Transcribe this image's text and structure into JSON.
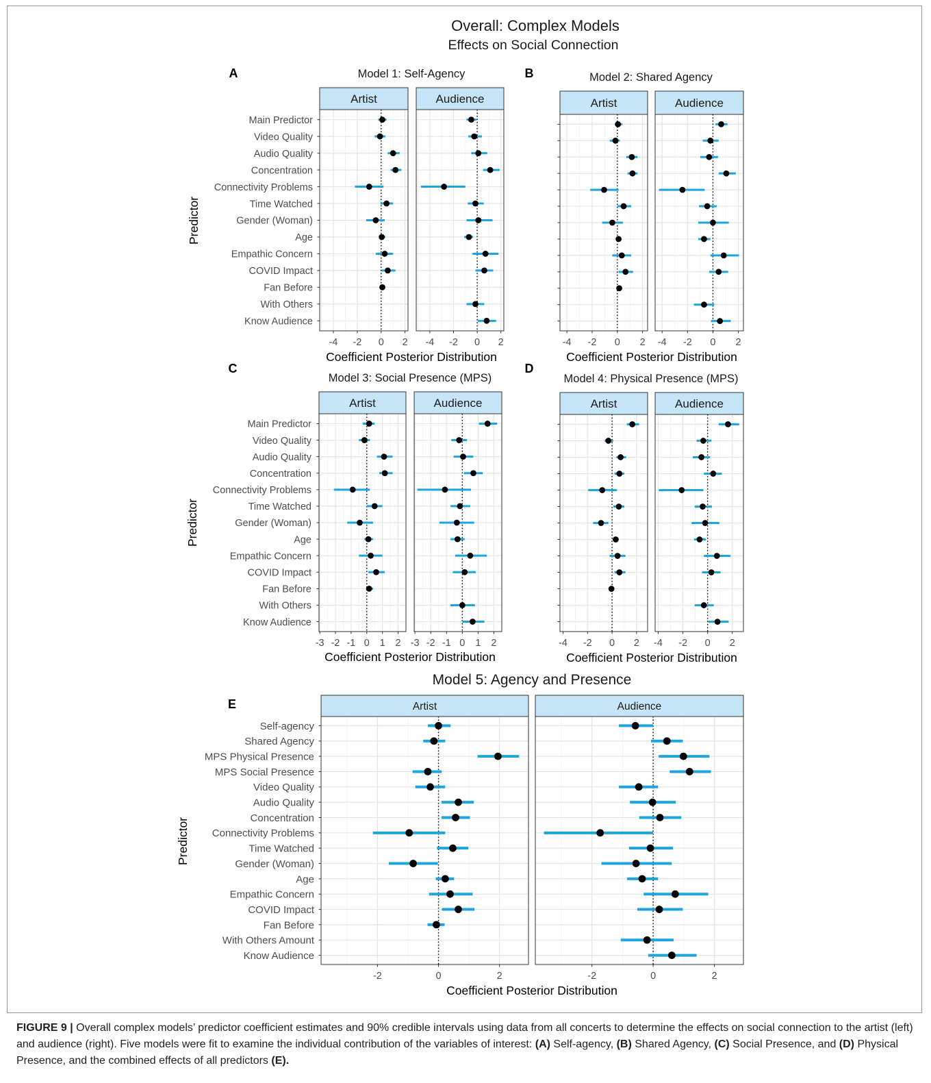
{
  "figure": {
    "title": "Overall: Complex Models",
    "subtitle": "Effects on Social Connection"
  },
  "colors": {
    "interval": "#1ea5df",
    "point": "#000000",
    "strip_fill": "#c6e6f7",
    "reference_line": "#000000"
  },
  "chart_data": [
    {
      "panel": "A",
      "type": "scatter",
      "title": "Model 1: Self-Agency",
      "xlabel": "Coefficient Posterior Distribution",
      "ylabel": "Predictor",
      "categories": [
        "Main Predictor",
        "Video Quality",
        "Audio Quality",
        "Concentration",
        "Connectivity Problems",
        "Time Watched",
        "Gender (Woman)",
        "Age",
        "Empathic Concern",
        "COVID Impact",
        "Fan Before",
        "With Others",
        "Know Audience"
      ],
      "xlim": [
        -5.15,
        2.25
      ],
      "xticks": [
        -4,
        -2,
        0,
        2
      ],
      "reference_line": 0,
      "grid": true,
      "series": [
        {
          "name": "Artist",
          "estimate": [
            0.1,
            -0.1,
            1.0,
            1.2,
            -1.0,
            0.45,
            -0.45,
            0.05,
            0.3,
            0.55,
            0.1,
            null,
            null
          ],
          "lower": [
            -0.25,
            -0.55,
            0.55,
            0.8,
            -2.2,
            -0.05,
            -1.25,
            -0.15,
            -0.45,
            0.05,
            -0.05,
            null,
            null
          ],
          "upper": [
            0.45,
            0.35,
            1.55,
            1.7,
            0.2,
            1.0,
            0.3,
            0.35,
            1.0,
            1.2,
            0.3,
            null,
            null
          ]
        },
        {
          "name": "Audience",
          "estimate": [
            -0.5,
            -0.25,
            0.1,
            1.1,
            -2.8,
            -0.15,
            0.1,
            -0.7,
            0.7,
            0.6,
            null,
            -0.15,
            0.8
          ],
          "lower": [
            -0.9,
            -0.75,
            -0.5,
            0.5,
            -4.75,
            -0.8,
            -0.9,
            -1.1,
            -0.4,
            -0.15,
            null,
            -0.9,
            0.05
          ],
          "upper": [
            -0.05,
            0.4,
            0.85,
            1.9,
            -1.0,
            0.55,
            1.3,
            -0.35,
            1.8,
            1.35,
            null,
            0.6,
            1.6
          ]
        }
      ]
    },
    {
      "panel": "B",
      "type": "scatter",
      "title": "Model 2: Shared Agency",
      "xlabel": "Coefficient Posterior Distribution",
      "xlim": [
        -4.55,
        2.4
      ],
      "xticks": [
        -4,
        -2,
        0,
        2
      ],
      "reference_line": 0,
      "grid": true,
      "series": [
        {
          "name": "Artist",
          "estimate": [
            0.05,
            -0.15,
            1.15,
            1.2,
            -1.05,
            0.5,
            -0.4,
            0.1,
            0.35,
            0.65,
            0.15,
            null,
            null
          ],
          "lower": [
            -0.2,
            -0.6,
            0.7,
            0.8,
            -2.15,
            0.0,
            -1.2,
            -0.1,
            -0.4,
            0.1,
            0.0,
            null,
            null
          ],
          "upper": [
            0.4,
            0.2,
            1.6,
            1.6,
            0.1,
            1.1,
            0.45,
            0.3,
            1.1,
            1.25,
            0.3,
            null,
            null
          ]
        },
        {
          "name": "Audience",
          "estimate": [
            0.65,
            -0.2,
            -0.3,
            1.05,
            -2.4,
            -0.45,
            0.0,
            -0.7,
            0.85,
            0.45,
            null,
            -0.7,
            0.55
          ],
          "lower": [
            0.2,
            -0.8,
            -1.0,
            0.45,
            -4.25,
            -1.1,
            -1.15,
            -1.15,
            -0.2,
            -0.3,
            null,
            -1.5,
            -0.15
          ],
          "upper": [
            1.15,
            0.45,
            0.4,
            1.8,
            -0.65,
            0.3,
            1.25,
            -0.2,
            2.05,
            1.2,
            null,
            0.1,
            1.4
          ]
        }
      ]
    },
    {
      "panel": "C",
      "type": "scatter",
      "title": "Model 3: Social Presence (MPS)",
      "xlabel": "Coefficient Posterior Distribution",
      "ylabel": "Predictor",
      "categories": [
        "Main Predictor",
        "Video Quality",
        "Audio Quality",
        "Concentration",
        "Connectivity Problems",
        "Time Watched",
        "Gender (Woman)",
        "Age",
        "Empathic Concern",
        "COVID Impact",
        "Fan Before",
        "With Others",
        "Know Audience"
      ],
      "xlim": [
        -3.05,
        2.5
      ],
      "xticks": [
        -3,
        -2,
        -1,
        0,
        1,
        2
      ],
      "reference_line": 0,
      "grid": true,
      "series": [
        {
          "name": "Artist",
          "estimate": [
            0.15,
            -0.15,
            1.1,
            1.15,
            -0.9,
            0.5,
            -0.45,
            0.1,
            0.25,
            0.6,
            0.15,
            null,
            null
          ],
          "lower": [
            -0.25,
            -0.5,
            0.65,
            0.8,
            -2.1,
            0.0,
            -1.25,
            -0.15,
            -0.5,
            0.1,
            -0.05,
            null,
            null
          ],
          "upper": [
            0.5,
            0.2,
            1.65,
            1.65,
            0.2,
            1.0,
            0.4,
            0.4,
            1.0,
            1.15,
            0.4,
            null,
            null
          ]
        },
        {
          "name": "Audience",
          "estimate": [
            1.6,
            -0.2,
            0.05,
            0.7,
            -1.1,
            -0.15,
            -0.35,
            -0.3,
            0.5,
            0.15,
            null,
            0.0,
            0.65
          ],
          "lower": [
            1.05,
            -0.7,
            -0.55,
            0.1,
            -2.85,
            -0.75,
            -1.45,
            -0.75,
            -0.45,
            -0.6,
            null,
            -0.75,
            0.0
          ],
          "upper": [
            2.2,
            0.3,
            0.7,
            1.3,
            0.55,
            0.5,
            0.75,
            0.15,
            1.55,
            0.85,
            null,
            0.8,
            1.4
          ]
        }
      ]
    },
    {
      "panel": "D",
      "type": "scatter",
      "title": "Model 4: Physical Presence (MPS)",
      "xlabel": "Coefficient Posterior Distribution",
      "xlim": [
        -4.25,
        2.9
      ],
      "xticks": [
        -4,
        -2,
        0,
        2
      ],
      "reference_line": 0,
      "grid": true,
      "series": [
        {
          "name": "Artist",
          "estimate": [
            1.65,
            -0.3,
            0.7,
            0.6,
            -0.8,
            0.55,
            -0.9,
            0.3,
            0.45,
            0.6,
            -0.05,
            null,
            null
          ],
          "lower": [
            1.2,
            -0.6,
            0.35,
            0.2,
            -1.95,
            0.1,
            -1.55,
            0.1,
            -0.2,
            0.2,
            -0.2,
            null,
            null
          ],
          "upper": [
            2.2,
            0.1,
            1.15,
            1.0,
            0.4,
            1.0,
            -0.3,
            0.5,
            1.1,
            1.1,
            0.15,
            null,
            null
          ]
        },
        {
          "name": "Audience",
          "estimate": [
            1.65,
            -0.35,
            -0.5,
            0.45,
            -2.1,
            -0.4,
            -0.2,
            -0.65,
            0.75,
            0.3,
            null,
            -0.3,
            0.8
          ],
          "lower": [
            0.9,
            -0.9,
            -1.2,
            -0.3,
            -3.95,
            -1.05,
            -1.3,
            -1.1,
            -0.3,
            -0.45,
            null,
            -1.05,
            0.05
          ],
          "upper": [
            2.55,
            0.3,
            0.2,
            1.15,
            -0.35,
            0.35,
            0.95,
            -0.15,
            1.85,
            1.05,
            null,
            0.5,
            1.7
          ]
        }
      ]
    },
    {
      "panel": "E",
      "type": "scatter",
      "title": "Model 5: Agency and Presence",
      "xlabel": "Coefficient Posterior Distribution",
      "ylabel": "Predictor",
      "categories": [
        "Self-agency",
        "Shared Agency",
        "MPS Physical Presence",
        "MPS Social Presence",
        "Video Quality",
        "Audio Quality",
        "Concentration",
        "Connectivity Problems",
        "Time Watched",
        "Gender (Woman)",
        "Age",
        "Empathic Concern",
        "COVID Impact",
        "Fan Before",
        "With Others Amount",
        "Know Audience"
      ],
      "xlim": [
        -3.85,
        2.95
      ],
      "xticks": [
        -2,
        0,
        2
      ],
      "reference_line": 0,
      "grid": true,
      "series": [
        {
          "name": "Artist",
          "estimate": [
            0.0,
            -0.15,
            1.95,
            -0.35,
            -0.27,
            0.65,
            0.56,
            -0.96,
            0.47,
            -0.83,
            0.22,
            0.38,
            0.65,
            -0.07,
            null,
            null
          ],
          "lower": [
            -0.35,
            -0.5,
            1.28,
            -0.85,
            -0.76,
            0.1,
            0.1,
            -2.15,
            -0.05,
            -1.63,
            -0.09,
            -0.31,
            0.11,
            -0.36,
            null,
            null
          ],
          "upper": [
            0.4,
            0.22,
            2.64,
            0.1,
            0.22,
            1.16,
            1.03,
            0.22,
            0.98,
            -0.02,
            0.51,
            1.12,
            1.18,
            0.2,
            null,
            null
          ]
        },
        {
          "name": "Audience",
          "estimate": [
            -0.58,
            0.45,
            0.99,
            1.19,
            -0.47,
            -0.02,
            0.22,
            -1.73,
            -0.09,
            -0.56,
            -0.36,
            0.72,
            0.2,
            null,
            -0.2,
            0.61
          ],
          "lower": [
            -1.12,
            -0.07,
            0.18,
            0.54,
            -1.12,
            -0.76,
            -0.45,
            -3.57,
            -0.79,
            -1.69,
            -0.85,
            -0.31,
            -0.52,
            null,
            -1.06,
            -0.16
          ],
          "upper": [
            0.0,
            0.97,
            1.84,
            1.89,
            0.16,
            0.74,
            0.92,
            0.0,
            0.65,
            0.61,
            0.16,
            1.8,
            0.97,
            null,
            0.67,
            1.42
          ]
        }
      ]
    }
  ],
  "caption": {
    "runs": [
      {
        "text": "FIGURE 9 | ",
        "bold": true
      },
      {
        "text": "Overall complex models’ predictor coefficient estimates and 90% credible intervals using data from all concerts to determine the effects on social connection to the artist (left) and audience (right). Five models were fit to examine the individual contribution of the variables of interest: ",
        "bold": false
      },
      {
        "text": "(A)",
        "bold": true
      },
      {
        "text": " Self-agency, ",
        "bold": false
      },
      {
        "text": "(B)",
        "bold": true
      },
      {
        "text": " Shared Agency, ",
        "bold": false
      },
      {
        "text": "(C)",
        "bold": true
      },
      {
        "text": " Social Presence, and ",
        "bold": false
      },
      {
        "text": "(D)",
        "bold": true
      },
      {
        "text": " Physical Presence, and the combined effects of all predictors ",
        "bold": false
      },
      {
        "text": "(E).",
        "bold": true
      }
    ]
  }
}
